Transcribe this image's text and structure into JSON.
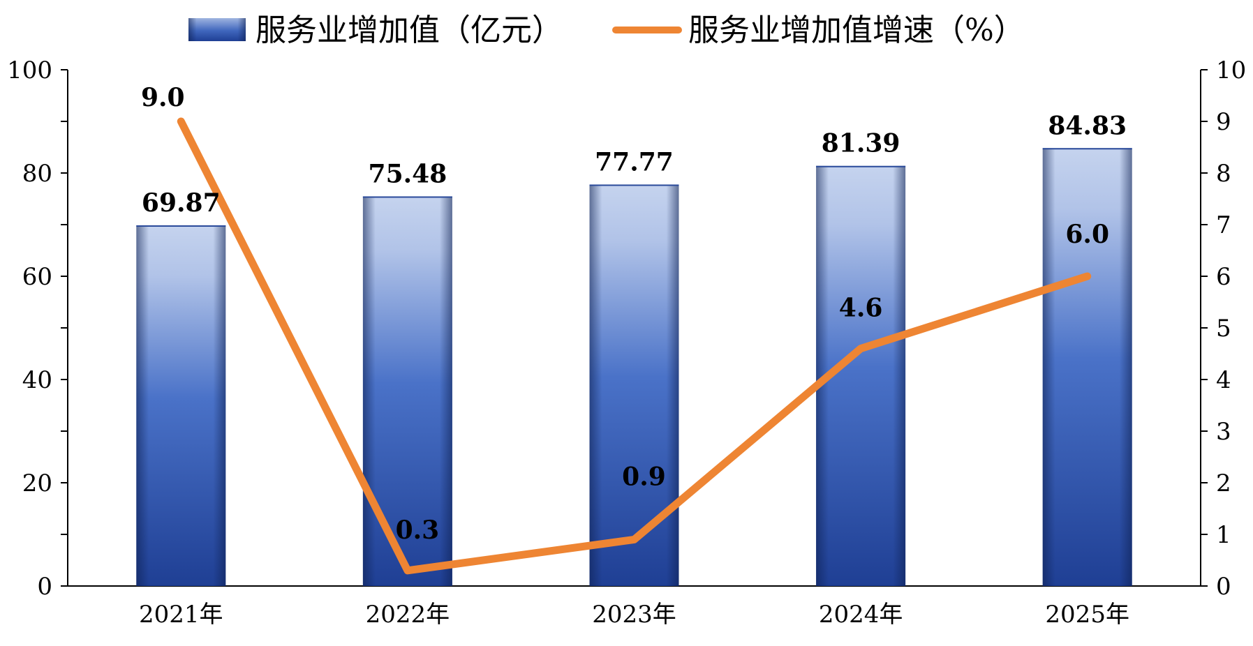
{
  "chart_data": {
    "type": "bar",
    "categories": [
      "2021年",
      "2022年",
      "2023年",
      "2024年",
      "2025年"
    ],
    "series": [
      {
        "name": "服务业增加值（亿元）",
        "type": "bar",
        "axis": "left",
        "values": [
          69.87,
          75.48,
          77.77,
          81.39,
          84.83
        ],
        "labels": [
          "69.87",
          "75.48",
          "77.77",
          "81.39",
          "84.83"
        ]
      },
      {
        "name": "服务业增加值增速（%）",
        "type": "line",
        "axis": "right",
        "values": [
          9.0,
          0.3,
          0.9,
          4.6,
          6.0
        ],
        "labels": [
          "9.0",
          "0.3",
          "0.9",
          "4.6",
          "6.0"
        ]
      }
    ],
    "left_axis": {
      "ylim": [
        0,
        100
      ],
      "major_ticks": [
        0,
        20,
        40,
        60,
        80,
        100
      ],
      "tick_labels": [
        "0",
        "20",
        "40",
        "60",
        "80",
        "100"
      ],
      "minor_ticks": [
        10,
        30,
        50,
        70,
        90
      ]
    },
    "right_axis": {
      "ylim": [
        0,
        10
      ],
      "major_ticks": [
        0,
        1,
        2,
        3,
        4,
        5,
        6,
        7,
        8,
        9,
        10
      ],
      "tick_labels": [
        "0",
        "1",
        "2",
        "3",
        "4",
        "5",
        "6",
        "7",
        "8",
        "9",
        "10"
      ]
    },
    "legend_position": "top-center",
    "grid": false,
    "colors": {
      "bar_top": "#c5d3ee",
      "bar_mid": "#4a72c8",
      "bar_bottom": "#1f3f94",
      "bar_edge": "#2a4a9a",
      "line": "#ee8533",
      "axis": "#000000",
      "text": "#000000"
    }
  }
}
